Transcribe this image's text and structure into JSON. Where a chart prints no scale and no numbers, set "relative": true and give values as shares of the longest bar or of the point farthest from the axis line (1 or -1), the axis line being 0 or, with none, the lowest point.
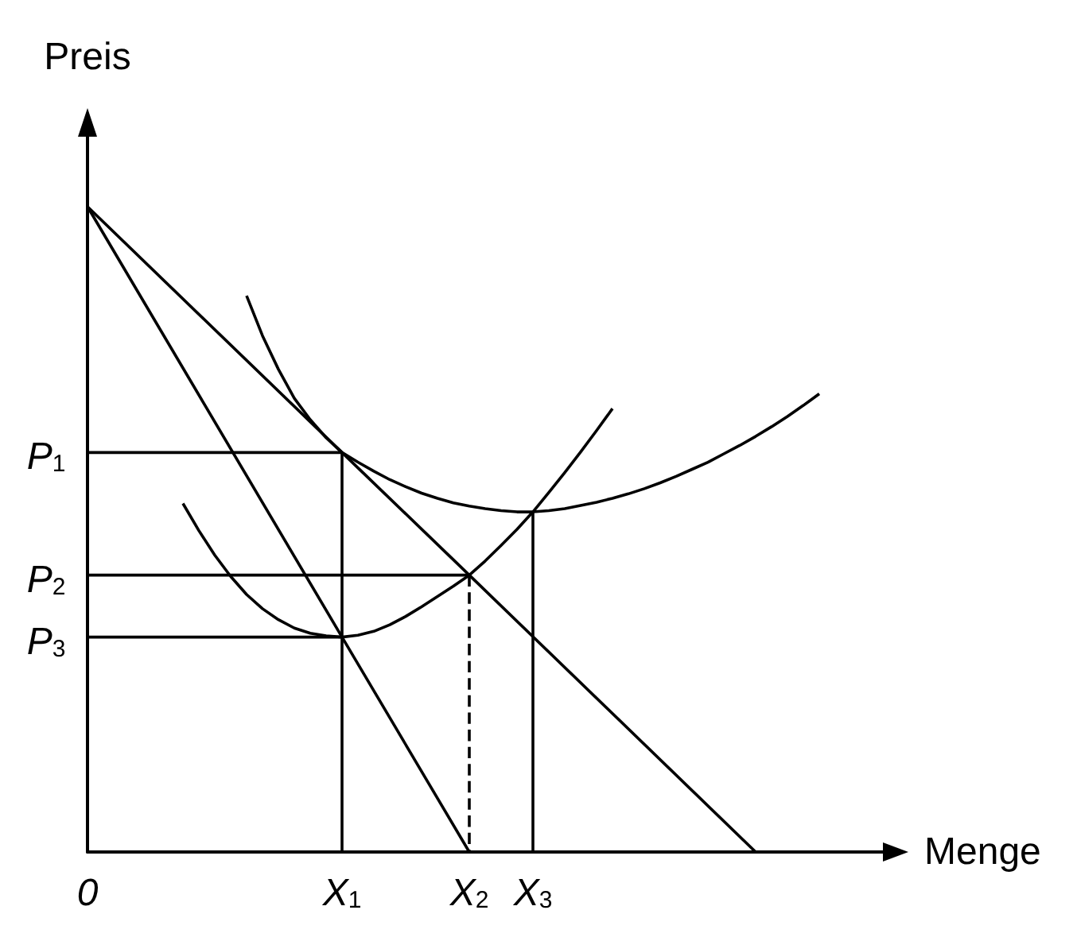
{
  "chart_data": {
    "type": "line",
    "relative": true,
    "xlabel": "Menge",
    "ylabel": "Preis",
    "marker": "none",
    "grid": false,
    "categories": [
      "0",
      null,
      null,
      null,
      null,
      null,
      null,
      null,
      null,
      null,
      null,
      null,
      null,
      null,
      null,
      null,
      "X$_{1}$",
      null,
      null,
      null,
      null,
      null,
      null,
      null,
      "X$_{2}$",
      null,
      null,
      null,
      "X$_{3}$",
      null,
      null,
      null,
      null,
      null,
      null,
      null,
      null,
      null,
      null,
      null,
      null,
      null,
      null,
      null,
      null,
      null,
      null,
      null,
      null,
      null,
      null
    ],
    "series": [
      {
        "color": "#000000",
        "values": [
          1,
          null,
          null,
          null,
          null,
          null,
          null,
          null,
          null,
          null,
          null,
          null,
          null,
          null,
          null,
          null,
          0.619,
          null,
          null,
          null,
          null,
          null,
          null,
          null,
          0.429,
          null,
          null,
          null,
          null,
          null,
          null,
          null,
          null,
          null,
          null,
          null,
          null,
          null,
          null,
          null,
          null,
          null,
          0,
          null,
          null,
          null,
          null,
          null,
          null,
          null,
          null
        ]
      },
      {
        "color": "#000000",
        "values": [
          1,
          null,
          null,
          null,
          null,
          null,
          null,
          null,
          null,
          null,
          null,
          null,
          null,
          null,
          null,
          null,
          0.333,
          null,
          null,
          null,
          null,
          null,
          null,
          null,
          0,
          null,
          null,
          null,
          null,
          null,
          null,
          null,
          null,
          null,
          null,
          null,
          null,
          null,
          null,
          null,
          null,
          null,
          null,
          null,
          null,
          null,
          null,
          null,
          null,
          null,
          null
        ]
      },
      {
        "color": "#000000",
        "values": [
          null,
          null,
          null,
          null,
          null,
          null,
          null,
          null,
          null,
          null,
          0.862,
          0.8,
          0.748,
          0.703,
          0.67,
          0.642,
          0.619,
          0.604,
          0.59,
          0.577,
          0.566,
          0.556,
          0.548,
          0.541,
          0.536,
          0.532,
          0.529,
          0.527,
          0.527,
          0.529,
          0.532,
          0.537,
          0.542,
          0.548,
          0.555,
          0.563,
          0.572,
          0.582,
          0.593,
          0.604,
          0.617,
          0.63,
          0.644,
          0.659,
          0.675,
          0.692,
          0.71,
          null,
          null,
          null,
          null
        ]
      },
      {
        "color": "#000000",
        "values": [
          null,
          null,
          null,
          null,
          null,
          null,
          0.54,
          0.498,
          0.46,
          0.427,
          0.399,
          0.377,
          0.36,
          0.347,
          0.339,
          0.335,
          0.333,
          0.336,
          0.342,
          0.352,
          0.365,
          0.38,
          0.396,
          0.412,
          0.429,
          0.451,
          0.475,
          0.5,
          0.527,
          0.557,
          0.588,
          0.62,
          0.653,
          0.687,
          null,
          null,
          null,
          null,
          null,
          null,
          null,
          null,
          null,
          null,
          null,
          null,
          null,
          null,
          null,
          null,
          null
        ]
      },
      {
        "name": "P$_{1}$",
        "color": "#000000",
        "x": [
          "0",
          "X$_{1}$"
        ],
        "values": [
          0.619,
          0.619
        ]
      },
      {
        "color": "#000000",
        "x": [
          "X$_{1}$",
          "X$_{1}$"
        ],
        "values": [
          0.619,
          0
        ]
      },
      {
        "name": "P$_{3}$",
        "color": "#000000",
        "x": [
          "0",
          "X$_{1}$"
        ],
        "values": [
          0.333,
          0.333
        ]
      },
      {
        "name": "P$_{2}$",
        "color": "#000000",
        "x": [
          "0",
          "X$_{2}$"
        ],
        "values": [
          0.429,
          0.429
        ]
      },
      {
        "color": "#000000",
        "x": [
          "X$_{2}$",
          "X$_{2}$"
        ],
        "values": [
          0.429,
          0
        ],
        "line_style": "dashed"
      },
      {
        "color": "#000000",
        "x": [
          "X$_{3}$",
          "X$_{3}$"
        ],
        "values": [
          0.527,
          0
        ]
      }
    ]
  }
}
